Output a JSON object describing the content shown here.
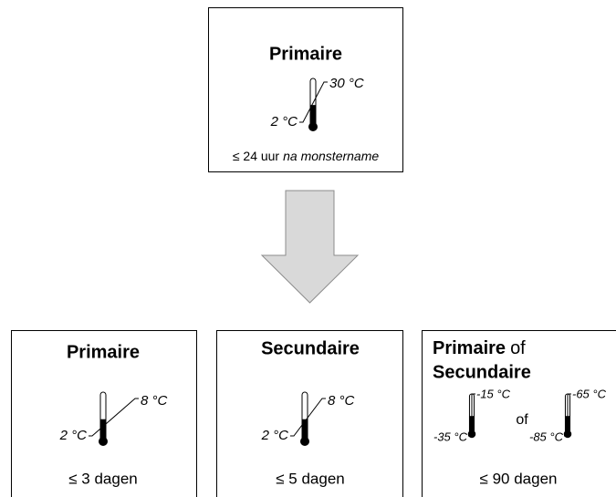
{
  "top": {
    "title": "Primaire",
    "high": "30 °C",
    "low": "2 °C",
    "note": "≤ 24 uur",
    "note_italic": "na monstername"
  },
  "boxes": [
    {
      "title": "Primaire",
      "high": "8 °C",
      "low": "2 °C",
      "duration": "≤ 3 dagen"
    },
    {
      "title": "Secundaire",
      "high": "8 °C",
      "low": "2 °C",
      "duration": "≤ 5 dagen"
    },
    {
      "title_bold": "Primaire",
      "title_join": "of",
      "title_line2": "Secundaire",
      "thermometers": [
        {
          "high": "-15 °C",
          "low": "-35 °C"
        },
        {
          "high": "-65 °C",
          "low": "-85 °C"
        }
      ],
      "separator": "of",
      "duration": "≤ 90 dagen"
    }
  ]
}
